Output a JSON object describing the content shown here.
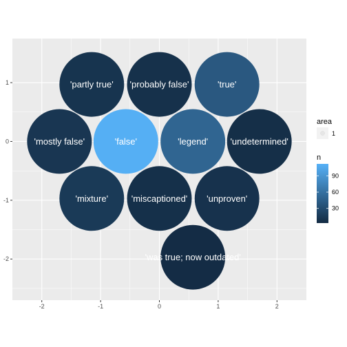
{
  "chart_data": {
    "type": "scatter",
    "xlim": [
      -2.5,
      2.5
    ],
    "ylim": [
      -2.7,
      1.75
    ],
    "x_ticks": [
      -2,
      -1,
      0,
      1,
      2
    ],
    "y_ticks": [
      1,
      0,
      -1,
      -2
    ],
    "x_minor": [
      -1.5,
      -0.5,
      0.5,
      1.5
    ],
    "y_minor": [
      0.5,
      -0.5,
      -1.5,
      -2.5
    ],
    "grid": true,
    "bubble_radius": 0.55,
    "points": [
      {
        "label": "'partly true'",
        "x": -1.15,
        "y": 0.97,
        "n": 10
      },
      {
        "label": "'probably false'",
        "x": 0.0,
        "y": 0.97,
        "n": 8
      },
      {
        "label": "'true'",
        "x": 1.15,
        "y": 0.97,
        "n": 40
      },
      {
        "label": "'mostly false'",
        "x": -1.7,
        "y": 0.0,
        "n": 12
      },
      {
        "label": "'false'",
        "x": -0.57,
        "y": 0.0,
        "n": 110
      },
      {
        "label": "'legend'",
        "x": 0.57,
        "y": 0.0,
        "n": 50
      },
      {
        "label": "'undetermined'",
        "x": 1.7,
        "y": 0.0,
        "n": 6
      },
      {
        "label": "'mixture'",
        "x": -1.15,
        "y": -0.97,
        "n": 15
      },
      {
        "label": "'miscaptioned'",
        "x": 0.0,
        "y": -0.97,
        "n": 7
      },
      {
        "label": "'unproven'",
        "x": 1.15,
        "y": -0.97,
        "n": 9
      },
      {
        "label": "'was true; now outdated'",
        "x": 0.57,
        "y": -1.97,
        "n": 4
      }
    ],
    "colors": {
      "panel": "#ebebeb",
      "grid": "#ffffff",
      "low": "#132b43",
      "high": "#56b1f7"
    },
    "legend": {
      "placement": "right",
      "area": {
        "title": "area",
        "label": "1"
      },
      "n": {
        "title": "n",
        "breaks": [
          90,
          60,
          30
        ],
        "min": 3,
        "max": 112
      }
    }
  }
}
